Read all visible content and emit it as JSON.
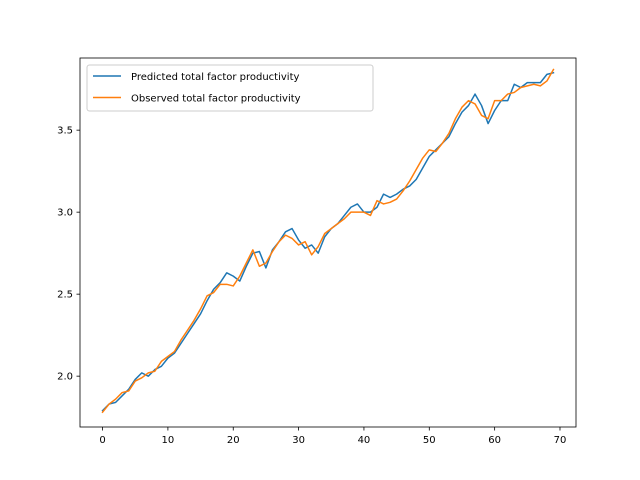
{
  "chart_data": {
    "type": "line",
    "title": "",
    "xlabel": "",
    "ylabel": "",
    "xlim": [
      -3.45,
      72.45
    ],
    "ylim": [
      1.69,
      3.94
    ],
    "xticks": [
      0,
      10,
      20,
      30,
      40,
      50,
      60,
      70
    ],
    "yticks": [
      2.0,
      2.5,
      3.0,
      3.5
    ],
    "ytick_labels": [
      "2.0",
      "2.5",
      "3.0",
      "3.5"
    ],
    "grid": false,
    "legend_position": "upper-left",
    "series": [
      {
        "name": "Predicted total factor productivity",
        "color": "#1f77b4",
        "x": [
          0,
          1,
          2,
          3,
          4,
          5,
          6,
          7,
          8,
          9,
          10,
          11,
          12,
          13,
          14,
          15,
          16,
          17,
          18,
          19,
          20,
          21,
          22,
          23,
          24,
          25,
          26,
          27,
          28,
          29,
          30,
          31,
          32,
          33,
          34,
          35,
          36,
          37,
          38,
          39,
          40,
          41,
          42,
          43,
          44,
          45,
          46,
          47,
          48,
          49,
          50,
          51,
          52,
          53,
          54,
          55,
          56,
          57,
          58,
          59,
          60,
          61,
          62,
          63,
          64,
          65,
          66,
          67,
          68,
          69
        ],
        "values": [
          1.79,
          1.83,
          1.84,
          1.88,
          1.92,
          1.98,
          2.02,
          2.0,
          2.04,
          2.06,
          2.11,
          2.14,
          2.2,
          2.26,
          2.32,
          2.38,
          2.46,
          2.53,
          2.57,
          2.63,
          2.61,
          2.58,
          2.67,
          2.75,
          2.76,
          2.66,
          2.77,
          2.82,
          2.88,
          2.9,
          2.83,
          2.78,
          2.8,
          2.75,
          2.85,
          2.9,
          2.93,
          2.98,
          3.03,
          3.05,
          3.0,
          3.0,
          3.03,
          3.11,
          3.09,
          3.11,
          3.14,
          3.16,
          3.2,
          3.27,
          3.34,
          3.38,
          3.42,
          3.46,
          3.54,
          3.61,
          3.65,
          3.72,
          3.65,
          3.54,
          3.62,
          3.68,
          3.68,
          3.78,
          3.76,
          3.79,
          3.79,
          3.79,
          3.84,
          3.85
        ]
      },
      {
        "name": "Observed total factor productivity",
        "color": "#ff7f0e",
        "x": [
          0,
          1,
          2,
          3,
          4,
          5,
          6,
          7,
          8,
          9,
          10,
          11,
          12,
          13,
          14,
          15,
          16,
          17,
          18,
          19,
          20,
          21,
          22,
          23,
          24,
          25,
          26,
          27,
          28,
          29,
          30,
          31,
          32,
          33,
          34,
          35,
          36,
          37,
          38,
          39,
          40,
          41,
          42,
          43,
          44,
          45,
          46,
          47,
          48,
          49,
          50,
          51,
          52,
          53,
          54,
          55,
          56,
          57,
          58,
          59,
          60,
          61,
          62,
          63,
          64,
          65,
          66,
          67,
          68,
          69
        ],
        "values": [
          1.78,
          1.83,
          1.86,
          1.9,
          1.91,
          1.97,
          1.99,
          2.02,
          2.03,
          2.09,
          2.12,
          2.15,
          2.22,
          2.28,
          2.34,
          2.41,
          2.49,
          2.51,
          2.56,
          2.56,
          2.55,
          2.61,
          2.69,
          2.77,
          2.67,
          2.69,
          2.76,
          2.82,
          2.86,
          2.84,
          2.8,
          2.82,
          2.74,
          2.79,
          2.87,
          2.9,
          2.93,
          2.96,
          3.0,
          3.0,
          3.0,
          2.98,
          3.07,
          3.05,
          3.06,
          3.08,
          3.13,
          3.19,
          3.26,
          3.33,
          3.38,
          3.37,
          3.42,
          3.48,
          3.57,
          3.64,
          3.68,
          3.66,
          3.59,
          3.57,
          3.68,
          3.68,
          3.72,
          3.73,
          3.76,
          3.77,
          3.78,
          3.77,
          3.8,
          3.87
        ]
      }
    ]
  }
}
